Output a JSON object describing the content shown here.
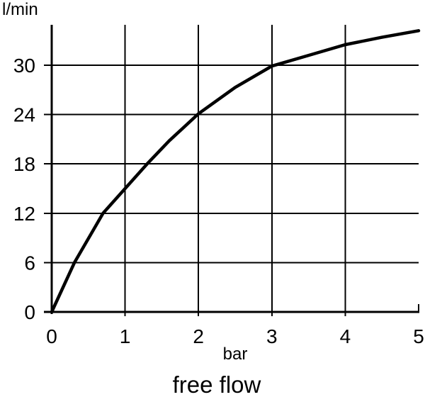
{
  "colors": {
    "ink": "#000000",
    "background": "#ffffff"
  },
  "chart_data": {
    "type": "line",
    "title": "free flow",
    "xlabel": "bar",
    "ylabel": "l/min",
    "xlim": [
      0,
      5
    ],
    "ylim": [
      0,
      35
    ],
    "x_ticks": [
      0,
      1,
      2,
      3,
      4,
      5
    ],
    "y_ticks": [
      0,
      6,
      12,
      18,
      24,
      30
    ],
    "grid": true,
    "legend": "none",
    "series": [
      {
        "name": "free flow",
        "x": [
          0,
          0.31,
          0.7,
          1.0,
          1.3,
          1.6,
          2.0,
          2.5,
          3.0,
          3.5,
          4.0,
          4.5,
          5.0
        ],
        "y": [
          0,
          6,
          12,
          15,
          18,
          20.8,
          24.1,
          27.3,
          29.9,
          31.2,
          32.5,
          33.4,
          34.2
        ]
      }
    ]
  }
}
